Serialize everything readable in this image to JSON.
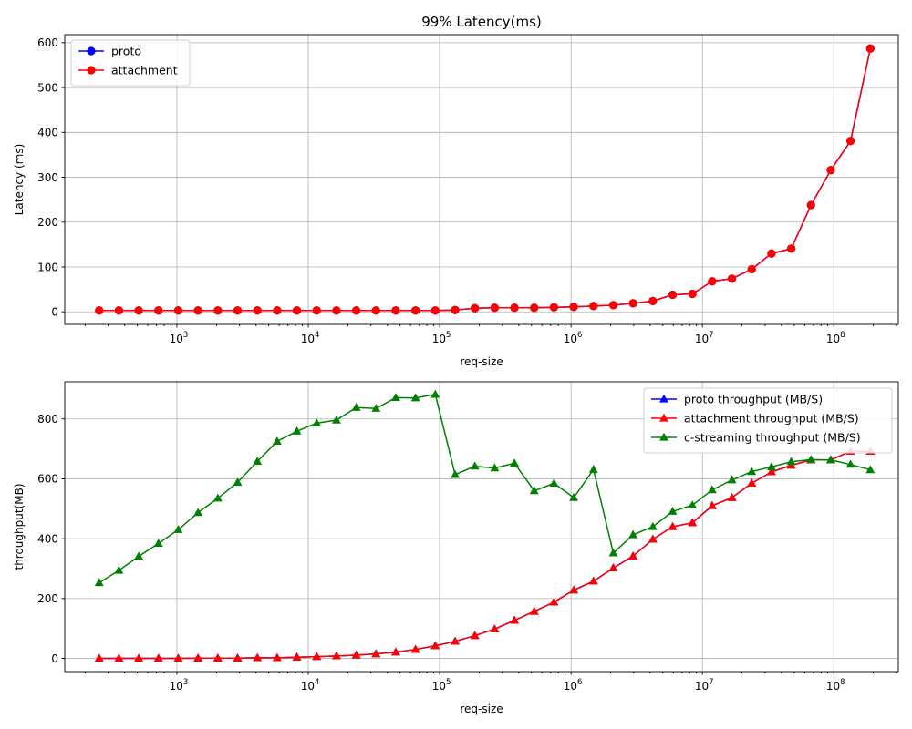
{
  "chart_data": [
    {
      "type": "line",
      "title": "99% Latency(ms)",
      "xlabel": "req-size",
      "ylabel": "Latency (ms)",
      "xscale": "log",
      "xlim": [
        140,
        310000000
      ],
      "ylim": [
        -28,
        618
      ],
      "yticks": [
        0,
        100,
        200,
        300,
        400,
        500,
        600
      ],
      "xtick_exponents": [
        3,
        4,
        5,
        6,
        7,
        8
      ],
      "x_base_label": "10",
      "grid": true,
      "legend_position": "upper left",
      "marker": "circle",
      "x": [
        256,
        362,
        512,
        724,
        1024,
        1448,
        2048,
        2896,
        4096,
        5793,
        8192,
        11585,
        16384,
        23170,
        32768,
        46341,
        65536,
        92682,
        131072,
        185364,
        262144,
        370728,
        524288,
        741455,
        1048576,
        1482910,
        2097152,
        2965821,
        4194304,
        5931642,
        8388608,
        11863283,
        16777216,
        23726566,
        33554432,
        47453133,
        67108864,
        94906266,
        134217728,
        189812531
      ],
      "series": [
        {
          "name": "proto",
          "color": "#0000ff",
          "values": [
            3,
            3,
            3,
            3,
            3,
            3,
            3,
            3,
            3,
            3,
            3,
            3,
            3,
            3,
            3,
            3,
            3,
            3,
            4,
            8,
            9,
            9,
            9,
            10,
            11,
            13,
            15,
            19,
            24,
            38,
            40,
            68,
            74,
            95,
            130,
            141,
            238,
            316,
            381,
            587
          ]
        },
        {
          "name": "attachment",
          "color": "#ff0000",
          "values": [
            3,
            3,
            3,
            3,
            3,
            3,
            3,
            3,
            3,
            3,
            3,
            3,
            3,
            3,
            3,
            3,
            3,
            3,
            4,
            8,
            9,
            9,
            9,
            10,
            11,
            13,
            15,
            19,
            24,
            38,
            40,
            68,
            74,
            95,
            130,
            141,
            238,
            316,
            381,
            587
          ]
        }
      ]
    },
    {
      "type": "line",
      "title": "",
      "xlabel": "req-size",
      "ylabel": "throughput(MB)",
      "xscale": "log",
      "xlim": [
        140,
        310000000
      ],
      "ylim": [
        -44,
        924
      ],
      "yticks": [
        0,
        200,
        400,
        600,
        800
      ],
      "xtick_exponents": [
        3,
        4,
        5,
        6,
        7,
        8
      ],
      "x_base_label": "10",
      "grid": true,
      "legend_position": "upper right",
      "marker": "triangle",
      "x": [
        256,
        362,
        512,
        724,
        1024,
        1448,
        2048,
        2896,
        4096,
        5793,
        8192,
        11585,
        16384,
        23170,
        32768,
        46341,
        65536,
        92682,
        131072,
        185364,
        262144,
        370728,
        524288,
        741455,
        1048576,
        1482910,
        2097152,
        2965821,
        4194304,
        5931642,
        8388608,
        11863283,
        16777216,
        23726566,
        33554432,
        47453133,
        67108864,
        94906266,
        134217728,
        189812531
      ],
      "series": [
        {
          "name": "proto throughput (MB/S)",
          "color": "#0000ff",
          "values": [
            0,
            0,
            0,
            0,
            0,
            1,
            1,
            1,
            2,
            2,
            4,
            6,
            8,
            11,
            15,
            21,
            30,
            42,
            57,
            76,
            98,
            127,
            157,
            188,
            228,
            258,
            302,
            342,
            398,
            440,
            453,
            510,
            537,
            585,
            623,
            645,
            663,
            663,
            692,
            692
          ]
        },
        {
          "name": "attachment throughput (MB/S)",
          "color": "#ff0000",
          "values": [
            0,
            0,
            0,
            0,
            0,
            1,
            1,
            1,
            2,
            2,
            4,
            6,
            8,
            11,
            15,
            21,
            30,
            42,
            57,
            76,
            98,
            127,
            157,
            188,
            228,
            258,
            302,
            342,
            398,
            440,
            453,
            510,
            537,
            585,
            623,
            645,
            663,
            663,
            692,
            692
          ]
        },
        {
          "name": "c-streaming throughput (MB/S)",
          "color": "#008000",
          "values": [
            253,
            294,
            341,
            384,
            430,
            487,
            535,
            588,
            658,
            725,
            759,
            786,
            796,
            838,
            835,
            871,
            870,
            882,
            614,
            642,
            636,
            652,
            560,
            585,
            537,
            631,
            352,
            413,
            440,
            491,
            512,
            563,
            596,
            624,
            640,
            657,
            664,
            663,
            648,
            630
          ]
        }
      ]
    }
  ]
}
